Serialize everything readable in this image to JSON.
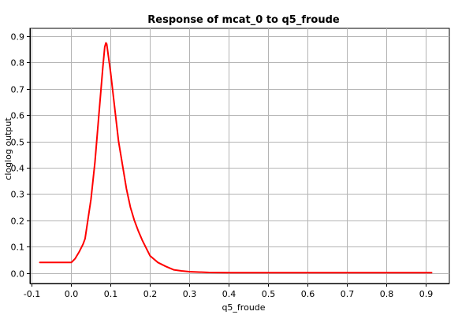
{
  "chart_data": {
    "type": "line",
    "title": "Response of mcat_0 to q5_froude",
    "xlabel": "q5_froude",
    "ylabel": "cloglog output",
    "xlim": [
      -0.105,
      0.96
    ],
    "ylim": [
      -0.04,
      0.93
    ],
    "xticks": [
      -0.1,
      0.0,
      0.1,
      0.2,
      0.3,
      0.4,
      0.5,
      0.6,
      0.7,
      0.8,
      0.9
    ],
    "xtick_labels": [
      "-0.1",
      "0.0",
      "0.1",
      "0.2",
      "0.3",
      "0.4",
      "0.5",
      "0.6",
      "0.7",
      "0.8",
      "0.9"
    ],
    "yticks": [
      0.0,
      0.1,
      0.2,
      0.3,
      0.4,
      0.5,
      0.6,
      0.7,
      0.8,
      0.9
    ],
    "ytick_labels": [
      "0.0",
      "0.1",
      "0.2",
      "0.3",
      "0.4",
      "0.5",
      "0.6",
      "0.7",
      "0.8",
      "0.9"
    ],
    "grid": true,
    "series_color": "#ff0000",
    "series": [
      {
        "x": [
          -0.08,
          -0.05,
          -0.02,
          0.0,
          0.01,
          0.02,
          0.03,
          0.035,
          0.04,
          0.05,
          0.06,
          0.07,
          0.08,
          0.085,
          0.088,
          0.09,
          0.1,
          0.11,
          0.12,
          0.13,
          0.14,
          0.15,
          0.16,
          0.17,
          0.18,
          0.19,
          0.2,
          0.22,
          0.24,
          0.26,
          0.28,
          0.3,
          0.35,
          0.4,
          0.5,
          0.6,
          0.7,
          0.8,
          0.9,
          0.915
        ],
        "y": [
          0.04,
          0.04,
          0.04,
          0.04,
          0.055,
          0.08,
          0.11,
          0.13,
          0.18,
          0.28,
          0.42,
          0.6,
          0.78,
          0.86,
          0.875,
          0.87,
          0.76,
          0.63,
          0.5,
          0.41,
          0.32,
          0.25,
          0.2,
          0.16,
          0.125,
          0.095,
          0.065,
          0.04,
          0.025,
          0.012,
          0.008,
          0.005,
          0.002,
          0.001,
          0.001,
          0.001,
          0.001,
          0.001,
          0.001,
          0.001
        ]
      }
    ]
  }
}
